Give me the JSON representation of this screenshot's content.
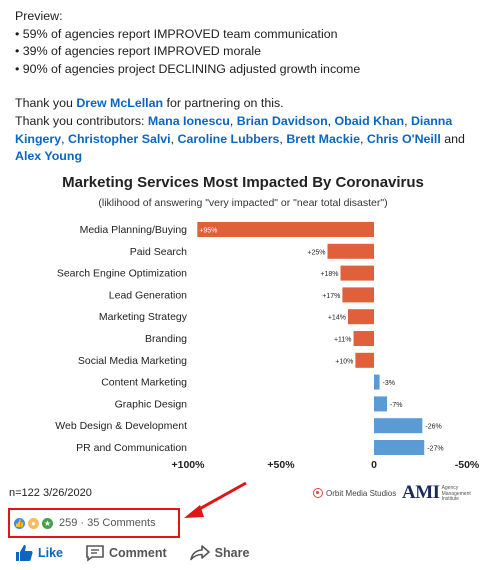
{
  "post": {
    "preview_label": "Preview:",
    "bullets": [
      "• 59% of agencies report IMPROVED team communication",
      "• 39% of agencies report IMPROVED morale",
      "• 90% of agencies project DECLINING adjusted growth income"
    ],
    "thanks_prefix": "Thank you ",
    "thanks_name": "Drew McLellan",
    "thanks_suffix": " for partnering on this.",
    "contributors_prefix": "Thank you contributors: ",
    "contributors": [
      "Mana Ionescu",
      "Brian Davidson",
      "Obaid Khan",
      "Dianna Kingery",
      "Christopher Salvi",
      "Caroline Lubbers",
      "Brett Mackie",
      "Chris O'Neill"
    ],
    "contributors_and": " and ",
    "contributor_last": "Alex Young"
  },
  "chart_data": {
    "type": "bar",
    "orientation": "horizontal",
    "title": "Marketing Services Most Impacted By Coronavirus",
    "subtitle": "(liklihood of answering \"very impacted\" or \"near total disaster\")",
    "categories": [
      "Media Planning/Buying",
      "Paid Search",
      "Search Engine Optimization",
      "Lead Generation",
      "Marketing Strategy",
      "Branding",
      "Social Media Marketing",
      "Content Marketing",
      "Graphic Design",
      "Web Design & Development",
      "PR and Communication"
    ],
    "values": [
      95,
      25,
      18,
      17,
      14,
      11,
      10,
      -3,
      -7,
      -26,
      -27
    ],
    "data_labels": [
      "+95%",
      "+25%",
      "+18%",
      "+17%",
      "+14%",
      "+11%",
      "+10%",
      "-3%",
      "-7%",
      "-26%",
      "-27%"
    ],
    "xlim": [
      100,
      -50
    ],
    "x_ticks": [
      100,
      50,
      0,
      -50
    ],
    "x_tick_labels": [
      "+100%",
      "+50%",
      "0",
      "-50%"
    ],
    "colors": {
      "positive": "#e0603c",
      "negative": "#5b9bd5"
    }
  },
  "footer": {
    "sample": "n=122  3/26/2020",
    "orbit": "Orbit Media Studios",
    "ami": "AMI",
    "ami_sub": "Agency Management Institute"
  },
  "social": {
    "reaction_icons": [
      "like-icon",
      "insightful-icon",
      "celebrate-icon"
    ],
    "count_text": "259 · 35 Comments",
    "like_label": "Like",
    "comment_label": "Comment",
    "share_label": "Share"
  }
}
